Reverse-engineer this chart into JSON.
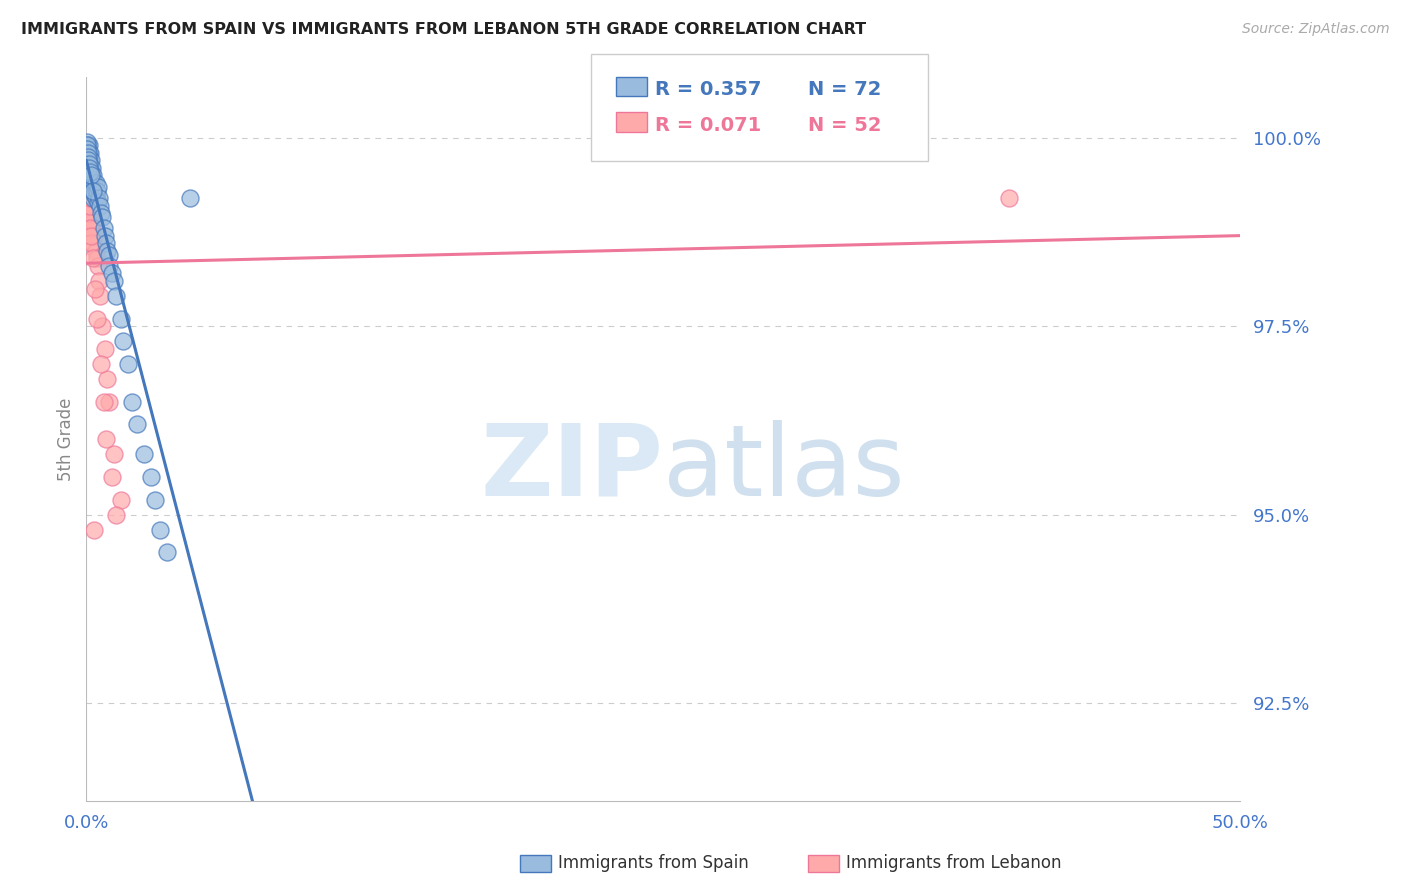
{
  "title": "IMMIGRANTS FROM SPAIN VS IMMIGRANTS FROM LEBANON 5TH GRADE CORRELATION CHART",
  "source": "Source: ZipAtlas.com",
  "ylabel": "5th Grade",
  "ylabel_ticks": [
    "100.0%",
    "97.5%",
    "95.0%",
    "92.5%"
  ],
  "ylabel_values": [
    100.0,
    97.5,
    95.0,
    92.5
  ],
  "xmin": 0.0,
  "xmax": 50.0,
  "ymin": 91.2,
  "ymax": 100.8,
  "legend_blue_r": "R = 0.357",
  "legend_blue_n": "N = 72",
  "legend_pink_r": "R = 0.071",
  "legend_pink_n": "N = 52",
  "color_blue": "#99BBDD",
  "color_pink": "#FFAAAA",
  "color_blue_dark": "#4477BB",
  "color_pink_dark": "#EE7799",
  "color_tick_label": "#4477CC",
  "color_grid": "#CCCCCC",
  "color_title": "#222222",
  "spain_x": [
    0.05,
    0.05,
    0.05,
    0.08,
    0.08,
    0.08,
    0.1,
    0.1,
    0.1,
    0.1,
    0.1,
    0.12,
    0.12,
    0.15,
    0.15,
    0.15,
    0.15,
    0.18,
    0.18,
    0.2,
    0.2,
    0.2,
    0.22,
    0.22,
    0.25,
    0.25,
    0.25,
    0.3,
    0.3,
    0.3,
    0.35,
    0.35,
    0.4,
    0.4,
    0.45,
    0.5,
    0.5,
    0.55,
    0.6,
    0.65,
    0.7,
    0.75,
    0.8,
    0.85,
    0.9,
    1.0,
    1.0,
    1.1,
    1.2,
    1.3,
    1.5,
    1.6,
    1.8,
    2.0,
    2.2,
    2.5,
    2.8,
    3.0,
    3.2,
    3.5,
    0.02,
    0.03,
    0.04,
    0.06,
    0.07,
    0.09,
    0.11,
    0.13,
    0.16,
    0.19,
    4.5,
    0.28
  ],
  "spain_y": [
    99.9,
    99.8,
    99.7,
    99.85,
    99.7,
    99.6,
    99.9,
    99.8,
    99.75,
    99.6,
    99.5,
    99.7,
    99.55,
    99.8,
    99.65,
    99.5,
    99.4,
    99.6,
    99.45,
    99.7,
    99.55,
    99.4,
    99.5,
    99.35,
    99.6,
    99.45,
    99.3,
    99.5,
    99.35,
    99.2,
    99.4,
    99.25,
    99.4,
    99.2,
    99.3,
    99.35,
    99.15,
    99.2,
    99.1,
    99.0,
    98.95,
    98.8,
    98.7,
    98.6,
    98.5,
    98.45,
    98.3,
    98.2,
    98.1,
    97.9,
    97.6,
    97.3,
    97.0,
    96.5,
    96.2,
    95.8,
    95.5,
    95.2,
    94.8,
    94.5,
    99.95,
    99.9,
    99.85,
    99.8,
    99.75,
    99.7,
    99.65,
    99.6,
    99.55,
    99.5,
    99.2,
    99.3
  ],
  "lebanon_x": [
    0.05,
    0.05,
    0.08,
    0.08,
    0.1,
    0.1,
    0.1,
    0.12,
    0.15,
    0.15,
    0.18,
    0.2,
    0.2,
    0.22,
    0.25,
    0.25,
    0.3,
    0.3,
    0.35,
    0.4,
    0.45,
    0.5,
    0.55,
    0.6,
    0.7,
    0.8,
    0.9,
    1.0,
    1.2,
    1.5,
    0.02,
    0.04,
    0.06,
    0.07,
    0.09,
    0.11,
    0.13,
    0.16,
    0.19,
    0.28,
    0.38,
    0.48,
    0.65,
    0.75,
    0.85,
    1.1,
    1.3,
    40.0,
    0.32,
    0.22,
    0.17,
    0.14
  ],
  "lebanon_y": [
    99.8,
    99.6,
    99.7,
    99.5,
    99.6,
    99.4,
    99.2,
    99.3,
    99.4,
    99.1,
    99.2,
    99.3,
    99.0,
    98.9,
    99.1,
    98.8,
    98.9,
    98.6,
    98.7,
    98.5,
    98.4,
    98.3,
    98.1,
    97.9,
    97.5,
    97.2,
    96.8,
    96.5,
    95.8,
    95.2,
    99.9,
    99.7,
    99.6,
    99.5,
    99.3,
    99.2,
    99.0,
    98.8,
    98.6,
    98.4,
    98.0,
    97.6,
    97.0,
    96.5,
    96.0,
    95.5,
    95.0,
    99.2,
    94.8,
    98.7,
    99.1,
    99.2
  ]
}
